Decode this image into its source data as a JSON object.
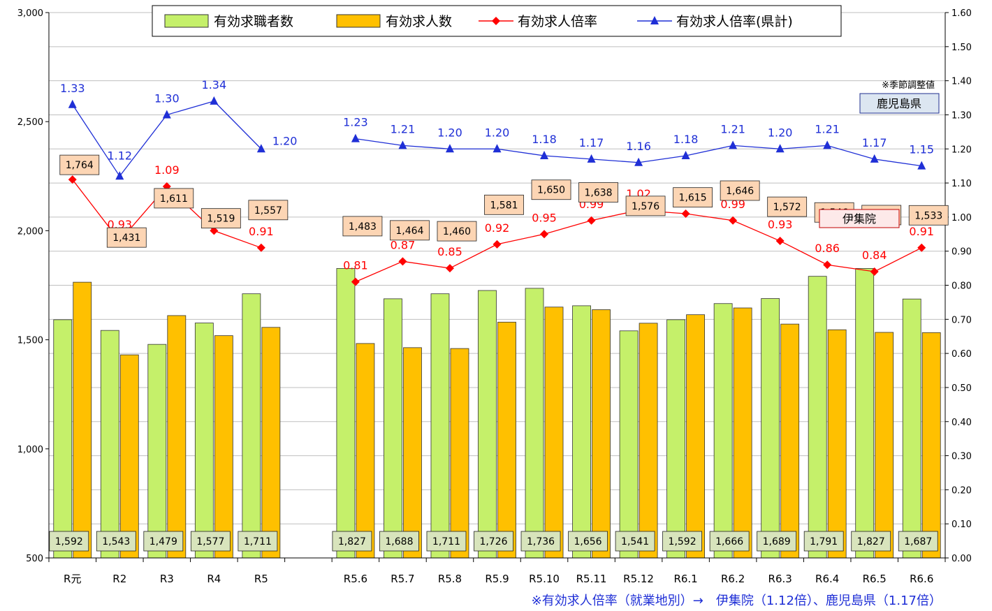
{
  "chart_data": {
    "type": "bar",
    "categories": [
      "R元",
      "R2",
      "R3",
      "R4",
      "R5",
      "",
      "R5.6",
      "R5.7",
      "R5.8",
      "R5.9",
      "R5.10",
      "R5.11",
      "R5.12",
      "R6.1",
      "R6.2",
      "R6.3",
      "R6.4",
      "R6.5",
      "R6.6"
    ],
    "left_axis": {
      "ylim": [
        500,
        3000
      ],
      "ticks": [
        "500",
        "1,000",
        "1,500",
        "2,000",
        "2,500",
        "3,000"
      ]
    },
    "right_axis": {
      "ylim": [
        0,
        1.6
      ],
      "ticks": [
        "0.00",
        "0.10",
        "0.20",
        "0.30",
        "0.40",
        "0.50",
        "0.60",
        "0.70",
        "0.80",
        "0.90",
        "1.00",
        "1.10",
        "1.20",
        "1.30",
        "1.40",
        "1.50",
        "1.60"
      ]
    },
    "grid": true,
    "legend_position": "top",
    "series": [
      {
        "name": "有効求職者数",
        "kind": "bar",
        "axis": "left",
        "color": "#c5f06a",
        "values": [
          1592,
          1543,
          1479,
          1577,
          1711,
          null,
          1827,
          1688,
          1711,
          1726,
          1736,
          1656,
          1541,
          1592,
          1666,
          1689,
          1791,
          1827,
          1687
        ],
        "labels": [
          "1,592",
          "1,543",
          "1,479",
          "1,577",
          "1,711",
          "",
          "1,827",
          "1,688",
          "1,711",
          "1,726",
          "1,736",
          "1,656",
          "1,541",
          "1,592",
          "1,666",
          "1,689",
          "1,791",
          "1,827",
          "1,687"
        ]
      },
      {
        "name": "有効求人数",
        "kind": "bar",
        "axis": "left",
        "color": "#ffc000",
        "values": [
          1764,
          1431,
          1611,
          1519,
          1557,
          null,
          1483,
          1464,
          1460,
          1581,
          1650,
          1638,
          1576,
          1615,
          1646,
          1572,
          1546,
          1534,
          1533
        ],
        "labels": [
          "1,764",
          "1,431",
          "1,611",
          "1,519",
          "1,557",
          "",
          "1,483",
          "1,464",
          "1,460",
          "1,581",
          "1,650",
          "1,638",
          "1,576",
          "1,615",
          "1,646",
          "1,572",
          "1,546",
          "1,534",
          "1,533"
        ]
      },
      {
        "name": "有効求人倍率",
        "kind": "line",
        "axis": "right",
        "color": "#ff0000",
        "marker": "diamond",
        "values": [
          1.11,
          0.93,
          1.09,
          0.96,
          0.91,
          null,
          0.81,
          0.87,
          0.85,
          0.92,
          0.95,
          0.99,
          1.02,
          1.01,
          0.99,
          0.93,
          0.86,
          0.84,
          0.91
        ],
        "labels": [
          "1.11",
          "0.93",
          "1.09",
          "0.96",
          "0.91",
          "",
          "0.81",
          "0.87",
          "0.85",
          "0.92",
          "0.95",
          "0.99",
          "1.02",
          "1.01",
          "0.99",
          "0.93",
          "0.86",
          "0.84",
          "0.91"
        ]
      },
      {
        "name": "有効求人倍率(県計)",
        "kind": "line",
        "axis": "right",
        "color": "#1f2fd6",
        "marker": "triangle",
        "values": [
          1.33,
          1.12,
          1.3,
          1.34,
          1.2,
          null,
          1.23,
          1.21,
          1.2,
          1.2,
          1.18,
          1.17,
          1.16,
          1.18,
          1.21,
          1.2,
          1.21,
          1.17,
          1.15
        ],
        "labels": [
          "1.33",
          "1.12",
          "1.30",
          "1.34",
          "1.20",
          "",
          "1.23",
          "1.21",
          "1.20",
          "1.20",
          "1.18",
          "1.17",
          "1.16",
          "1.18",
          "1.21",
          "1.20",
          "1.21",
          "1.17",
          "1.15"
        ]
      }
    ],
    "annotations": {
      "seasonal_note": "※季節調整値",
      "pref_box": "鹿児島県",
      "local_box": "伊集院",
      "footnote": "※有効求人倍率（就業地別）→　伊集院（1.12倍）、鹿児島県（1.17倍）"
    }
  }
}
